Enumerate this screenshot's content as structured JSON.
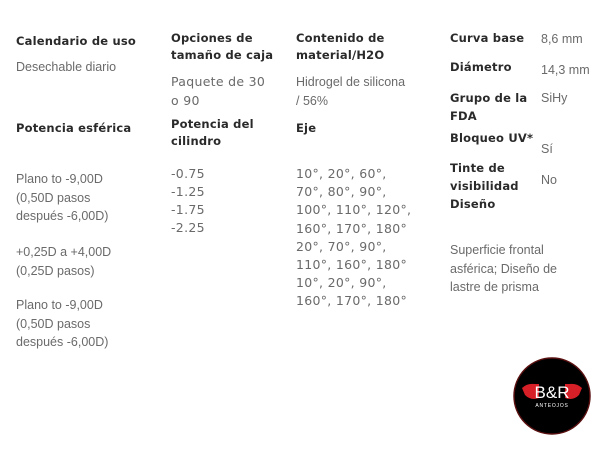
{
  "specs": {
    "calendario": {
      "label": "Calendario de uso",
      "value": "Desechable diario"
    },
    "caja": {
      "label": "Opciones de\ntamaño de caja",
      "value": "Paquete de 30\no 90"
    },
    "material": {
      "label": "Contenido de\nmaterial/H2O",
      "value": "Hidrogel de silicona\n/ 56%"
    },
    "esferica": {
      "label": "Potencia esférica",
      "values": [
        "Plano to -9,00D\n(0,50D pasos\ndespués -6,00D)",
        "+0,25D a +4,00D\n(0,25D pasos)",
        "Plano to -9,00D\n(0,50D pasos\ndespués -6,00D)"
      ]
    },
    "cilindro": {
      "label": "Potencia  del\ncilindro",
      "value": "-0.75\n-1.25\n-1.75\n-2.25"
    },
    "eje": {
      "label": "Eje",
      "value": "10°, 20°, 60°,\n70°, 80°, 90°,\n100°, 110°, 120°,\n160°, 170°, 180°\n20°, 70°, 90°,\n110°, 160°, 180°\n10°, 20°, 90°,\n160°, 170°, 180°"
    },
    "curva": {
      "label": "Curva base",
      "value": "8,6 mm"
    },
    "diametro": {
      "label": "Diámetro",
      "value": "14,3 mm"
    },
    "fda": {
      "label": "Grupo de la\nFDA",
      "value": "SiHy"
    },
    "uv": {
      "label": "Bloqueo UV*",
      "value": "Sí"
    },
    "tinte": {
      "label": "Tinte de\nvisibilidad",
      "value": "No"
    },
    "diseno": {
      "label": "Diseño",
      "value": "Superficie frontal\nasférica; Diseño de\nlastre de prisma"
    }
  },
  "logo": {
    "text": "B&R",
    "subtext": "ANTEOJOS",
    "colors": {
      "bg": "#000000",
      "accent": "#d61f26"
    }
  }
}
